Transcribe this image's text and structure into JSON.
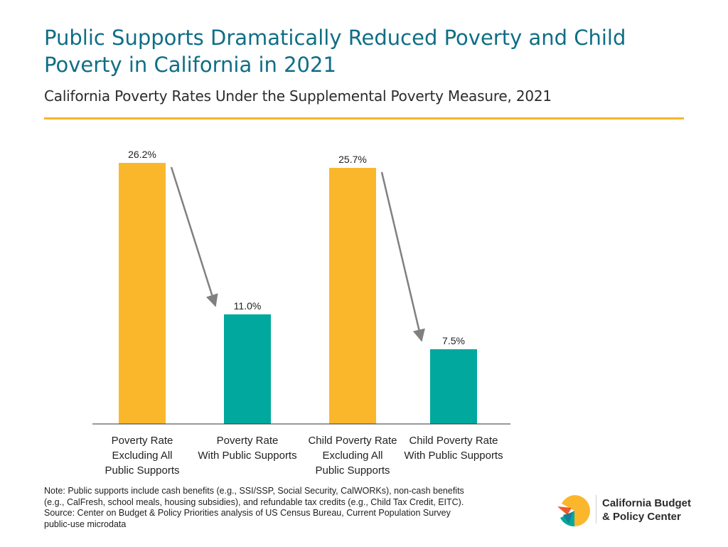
{
  "header": {
    "title": "Public Supports Dramatically Reduced Poverty and Child Poverty in California in 2021",
    "subtitle": "California Poverty Rates Under the Supplemental Poverty Measure, 2021"
  },
  "chart_data": {
    "type": "bar",
    "title": "Public Supports Dramatically Reduced Poverty and Child Poverty in California in 2021",
    "subtitle": "California Poverty Rates Under the Supplemental Poverty Measure, 2021",
    "categories": [
      "Poverty Rate Excluding All Public Supports",
      "Poverty Rate With Public Supports",
      "Child Poverty Rate Excluding All Public Supports",
      "Child Poverty Rate With Public Supports"
    ],
    "category_lines": [
      [
        "Poverty Rate",
        "Excluding All",
        "Public Supports"
      ],
      [
        "Poverty Rate",
        "With Public Supports"
      ],
      [
        "Child Poverty Rate",
        "Excluding All",
        "Public Supports"
      ],
      [
        "Child Poverty Rate",
        "With Public Supports"
      ]
    ],
    "values": [
      26.2,
      11.0,
      25.7,
      7.5
    ],
    "data_labels": [
      "26.2%",
      "11.0%",
      "25.7%",
      "7.5%"
    ],
    "bar_colors": [
      "#fbb72c",
      "#00a89e",
      "#fbb72c",
      "#00a89e"
    ],
    "ylim": [
      0,
      26.2
    ],
    "grid": false,
    "xlabel": "",
    "ylabel": "",
    "annotations": [
      {
        "type": "arrow",
        "from": 0,
        "to": 1
      },
      {
        "type": "arrow",
        "from": 2,
        "to": 3
      }
    ]
  },
  "note": {
    "lines": [
      "Note: Public supports include cash benefits (e.g., SSI/SSP, Social Security, CalWORKs), non-cash benefits",
      "(e.g., CalFresh, school meals, housing subsidies), and refundable tax credits (e.g., Child Tax Credit, EITC).",
      "Source: Center on Budget & Policy Priorities analysis of US Census Bureau, Current Population Survey",
      "public-use microdata"
    ]
  },
  "logo": {
    "line1": "California Budget",
    "line2": "& Policy Center"
  },
  "colors": {
    "title": "#0f6e85",
    "rule": "#f6b52b",
    "arrow": "#808080"
  }
}
